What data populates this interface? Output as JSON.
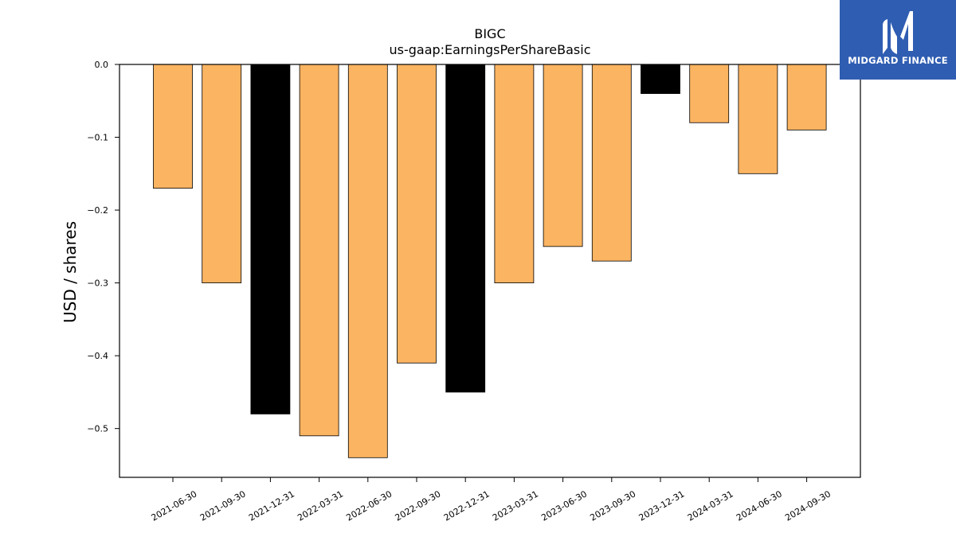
{
  "brand": {
    "name": "MIDGARD FINANCE",
    "logo_icon": "midgard-logo-icon",
    "background_color": "#2f5db2"
  },
  "chart_data": {
    "type": "bar",
    "title": "BIGC",
    "subtitle": "us-gaap:EarningsPerShareBasic",
    "xlabel": "",
    "ylabel": "USD / shares",
    "categories": [
      "2021-06-30",
      "2021-09-30",
      "2021-12-31",
      "2022-03-31",
      "2022-06-30",
      "2022-09-30",
      "2022-12-31",
      "2023-03-31",
      "2023-06-30",
      "2023-09-30",
      "2023-12-31",
      "2024-03-31",
      "2024-06-30",
      "2024-09-30"
    ],
    "values": [
      -0.17,
      -0.3,
      -0.48,
      -0.51,
      -0.54,
      -0.41,
      -0.45,
      -0.3,
      -0.25,
      -0.27,
      -0.04,
      -0.08,
      -0.15,
      -0.09
    ],
    "bar_colors": [
      "#fbb462",
      "#fbb462",
      "#000000",
      "#fbb462",
      "#fbb462",
      "#fbb462",
      "#000000",
      "#fbb462",
      "#fbb462",
      "#fbb462",
      "#000000",
      "#fbb462",
      "#fbb462",
      "#fbb462"
    ],
    "ylim": [
      -0.567,
      0.0
    ],
    "yticks": [
      0.0,
      -0.1,
      -0.2,
      -0.3,
      -0.4,
      -0.5
    ],
    "ytick_labels": [
      "0.0",
      "−0.1",
      "−0.2",
      "−0.3",
      "−0.4",
      "−0.5"
    ],
    "grid": false,
    "legend": "none"
  }
}
